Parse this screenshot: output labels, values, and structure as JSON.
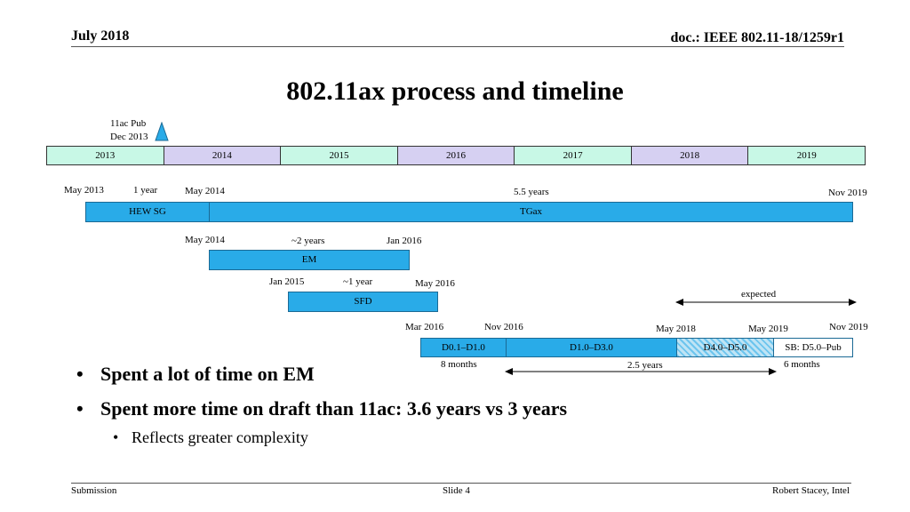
{
  "header": {
    "date": "July 2018",
    "doc": "doc.: IEEE 802.11-18/1259r1"
  },
  "title": "802.11ax process and timeline",
  "marker": {
    "line1": "11ac Pub",
    "line2": "Dec 2013"
  },
  "years": [
    "2013",
    "2014",
    "2015",
    "2016",
    "2017",
    "2018",
    "2019"
  ],
  "row1": {
    "start": "May 2013",
    "duration1": "1 year",
    "mid": "May 2014",
    "duration2": "5.5 years",
    "end": "Nov 2019",
    "hew_label": "HEW SG",
    "tgax_label": "TGax"
  },
  "row2": {
    "start": "May 2014",
    "duration": "~2 years",
    "end": "Jan 2016",
    "label": "EM"
  },
  "row3": {
    "start": "Jan 2015",
    "duration": "~1 year",
    "end": "May 2016",
    "label": "SFD"
  },
  "row4": {
    "start": "Mar 2016",
    "d1": "Nov 2016",
    "d2": "May 2018",
    "d3": "May 2019",
    "end": "Nov 2019",
    "expected": "expected",
    "segments": [
      "D0.1–D1.0",
      "D1.0–D3.0",
      "D4.0–D5.0",
      "SB: D5.0–Pub"
    ],
    "dur_a": "8 months",
    "dur_b": "2.5 years",
    "dur_c": "6 months"
  },
  "bullets": [
    "Spent a lot of time on EM",
    "Spent more time on draft than 11ac: 3.6 years vs 3 years"
  ],
  "sub_bullets": [
    "Reflects greater complexity"
  ],
  "footer": {
    "left": "Submission",
    "center": "Slide 4",
    "right": "Robert Stacey, Intel"
  }
}
